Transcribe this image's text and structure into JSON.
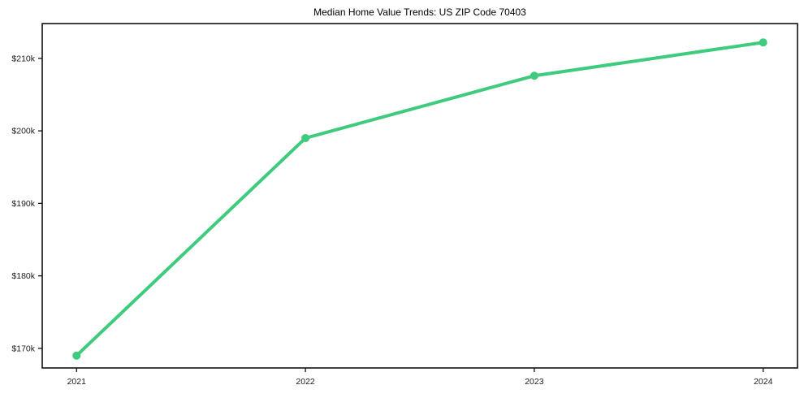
{
  "chart_data": {
    "type": "line",
    "title": "Median Home Value Trends: US ZIP Code 70403",
    "xlabel": "",
    "ylabel": "",
    "categories": [
      "2021",
      "2022",
      "2023",
      "2024"
    ],
    "series": [
      {
        "name": "Median Home Value",
        "values": [
          169000,
          199000,
          207600,
          212200
        ]
      }
    ],
    "y_ticks": [
      {
        "value": 170000,
        "label": "$170k"
      },
      {
        "value": 180000,
        "label": "$180k"
      },
      {
        "value": 190000,
        "label": "$190k"
      },
      {
        "value": 200000,
        "label": "$200k"
      },
      {
        "value": 210000,
        "label": "$210k"
      }
    ],
    "ylim": [
      167300,
      214800
    ],
    "x_index_range": [
      -0.15,
      3.15
    ],
    "grid": false,
    "legend": "none",
    "line_color": "#3ecb7d",
    "marker": "circle",
    "axis_color": "#111111",
    "tick_label_color": "#1a1a1a",
    "background": "#ffffff"
  }
}
